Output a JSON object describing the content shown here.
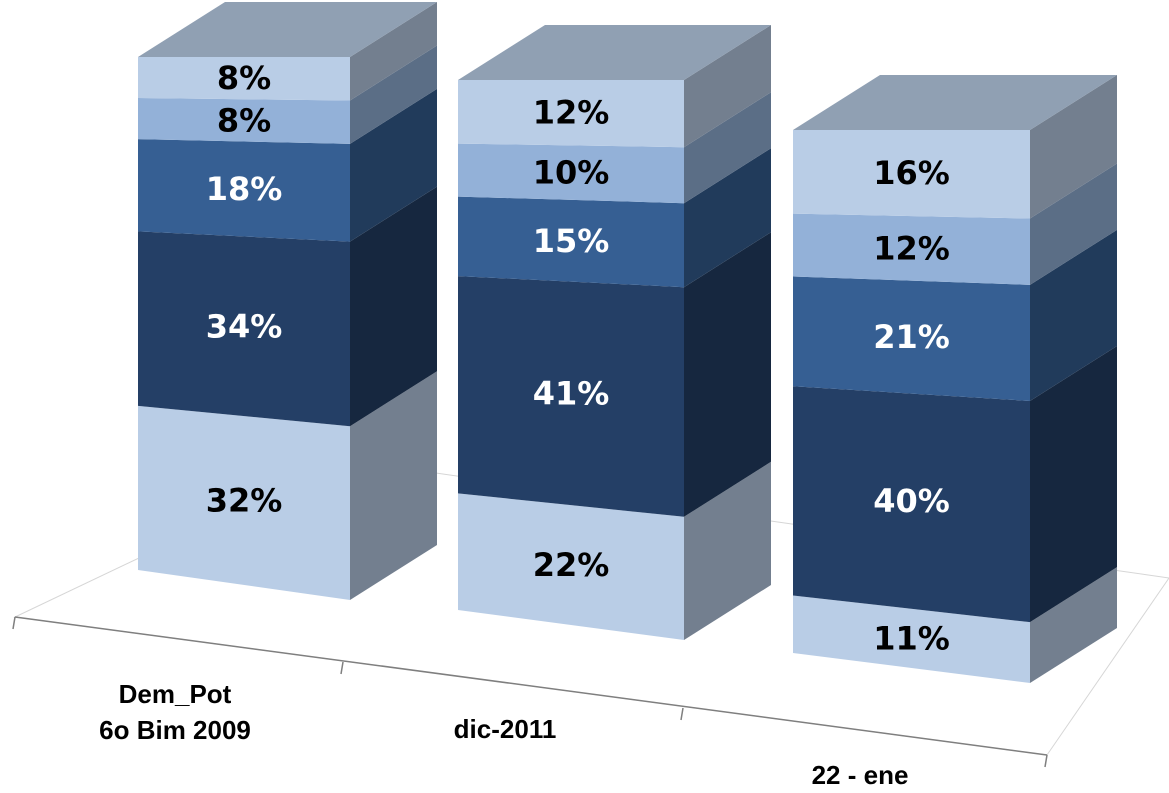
{
  "chart_data": {
    "type": "bar",
    "stacked": true,
    "three_d": true,
    "categories": [
      {
        "lines": [
          "Dem_Pot",
          "6o Bim 2009"
        ]
      },
      {
        "lines": [
          "dic-2011"
        ]
      },
      {
        "lines": [
          "22 - ene"
        ]
      }
    ],
    "series": [
      {
        "values": [
          32,
          22,
          11
        ],
        "labels": [
          "32%",
          "22%",
          "11%"
        ],
        "color": "#b9cde6",
        "label_color": "#000000"
      },
      {
        "values": [
          34,
          41,
          40
        ],
        "labels": [
          "34%",
          "41%",
          "40%"
        ],
        "color": "#243f66",
        "label_color": "#ffffff"
      },
      {
        "values": [
          18,
          15,
          21
        ],
        "labels": [
          "18%",
          "15%",
          "21%"
        ],
        "color": "#365f93",
        "label_color": "#ffffff"
      },
      {
        "values": [
          8,
          10,
          12
        ],
        "labels": [
          "8%",
          "10%",
          "12%"
        ],
        "color": "#93b1d8",
        "label_color": "#000000"
      },
      {
        "values": [
          8,
          12,
          16
        ],
        "labels": [
          "8%",
          "12%",
          "16%"
        ],
        "color": "#b9cde6",
        "label_color": "#000000"
      }
    ],
    "ylim": [
      0,
      100
    ],
    "legend": "none",
    "grid": false,
    "title": "",
    "xlabel": "",
    "ylabel": ""
  }
}
